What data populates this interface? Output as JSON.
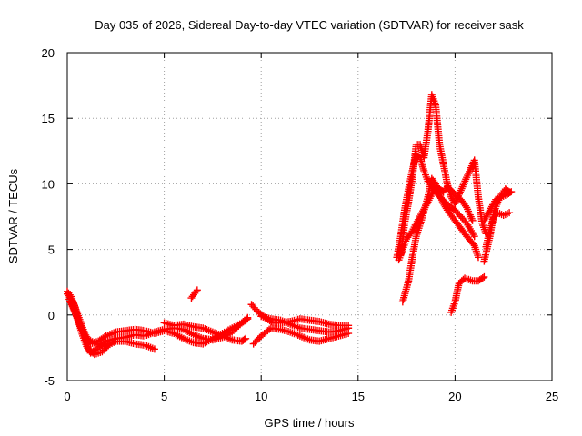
{
  "chart_data": {
    "type": "scatter",
    "title": "Day 035 of 2026, Sidereal Day-to-day VTEC variation (SDTVAR) for receiver sask",
    "xlabel": "GPS time / hours",
    "ylabel": "SDTVAR / TECUs",
    "xlim": [
      0,
      25
    ],
    "ylim": [
      -5,
      20
    ],
    "x_ticks": [
      "0",
      "5",
      "10",
      "15",
      "20",
      "25"
    ],
    "y_ticks": [
      "-5",
      "0",
      "5",
      "10",
      "15",
      "20"
    ],
    "grid": true,
    "marker": "plus",
    "series": [
      {
        "name": "SDTVAR",
        "color": "#ff0000",
        "tracks": [
          [
            [
              0.0,
              1.8
            ],
            [
              0.2,
              1.4
            ],
            [
              0.4,
              0.6
            ],
            [
              0.6,
              -0.6
            ],
            [
              0.8,
              -1.6
            ],
            [
              1.0,
              -2.4
            ],
            [
              1.2,
              -2.9
            ],
            [
              1.5,
              -2.6
            ],
            [
              2.0,
              -2.0
            ],
            [
              2.5,
              -1.8
            ],
            [
              3.0,
              -1.7
            ],
            [
              3.5,
              -1.5
            ],
            [
              4.0,
              -1.6
            ],
            [
              4.5,
              -1.3
            ],
            [
              5.0,
              -1.1
            ],
            [
              5.5,
              -1.0
            ],
            [
              6.0,
              -1.1
            ],
            [
              6.5,
              -1.5
            ],
            [
              7.0,
              -1.8
            ],
            [
              7.5,
              -1.9
            ],
            [
              8.0,
              -1.7
            ],
            [
              8.5,
              -1.3
            ],
            [
              9.0,
              -0.6
            ],
            [
              9.3,
              -0.2
            ]
          ],
          [
            [
              0.0,
              1.6
            ],
            [
              0.3,
              1.0
            ],
            [
              0.6,
              -0.2
            ],
            [
              0.9,
              -1.4
            ],
            [
              1.2,
              -2.2
            ],
            [
              1.6,
              -2.0
            ],
            [
              2.0,
              -1.6
            ],
            [
              2.5,
              -1.3
            ],
            [
              3.0,
              -1.2
            ],
            [
              3.5,
              -1.1
            ],
            [
              4.0,
              -1.2
            ],
            [
              4.5,
              -1.4
            ],
            [
              5.0,
              -1.2
            ],
            [
              5.5,
              -1.4
            ],
            [
              6.0,
              -1.8
            ],
            [
              6.5,
              -2.1
            ],
            [
              7.0,
              -2.2
            ],
            [
              7.5,
              -1.8
            ],
            [
              8.0,
              -1.4
            ],
            [
              8.5,
              -1.0
            ],
            [
              9.0,
              -0.6
            ],
            [
              9.3,
              -0.3
            ]
          ],
          [
            [
              0.1,
              1.2
            ],
            [
              0.4,
              0.2
            ],
            [
              0.7,
              -1.0
            ],
            [
              1.0,
              -1.8
            ],
            [
              1.5,
              -2.2
            ],
            [
              2.0,
              -2.4
            ],
            [
              2.5,
              -2.0
            ],
            [
              3.0,
              -2.0
            ],
            [
              3.5,
              -2.2
            ],
            [
              4.0,
              -2.3
            ],
            [
              4.5,
              -2.6
            ]
          ],
          [
            [
              0.2,
              1.0
            ],
            [
              0.5,
              -0.2
            ],
            [
              0.8,
              -1.2
            ],
            [
              1.1,
              -2.6
            ],
            [
              1.4,
              -3.0
            ],
            [
              1.8,
              -2.8
            ],
            [
              2.2,
              -2.2
            ]
          ],
          [
            [
              5.0,
              -0.6
            ],
            [
              5.5,
              -0.8
            ],
            [
              6.0,
              -0.7
            ],
            [
              6.5,
              -0.9
            ],
            [
              7.0,
              -1.0
            ],
            [
              7.5,
              -1.3
            ],
            [
              8.0,
              -1.6
            ],
            [
              8.5,
              -1.9
            ],
            [
              9.0,
              -2.0
            ],
            [
              9.2,
              -1.8
            ]
          ],
          [
            [
              6.4,
              1.3
            ],
            [
              6.7,
              1.9
            ]
          ],
          [
            [
              9.5,
              0.8
            ],
            [
              9.8,
              0.3
            ],
            [
              10.2,
              -0.2
            ],
            [
              10.6,
              -0.6
            ],
            [
              11.0,
              -0.6
            ],
            [
              11.5,
              -0.5
            ],
            [
              12.0,
              -0.3
            ],
            [
              12.5,
              -0.4
            ],
            [
              13.0,
              -0.5
            ],
            [
              13.5,
              -0.7
            ],
            [
              14.0,
              -0.8
            ],
            [
              14.5,
              -0.8
            ]
          ],
          [
            [
              9.6,
              -2.2
            ],
            [
              10.0,
              -1.6
            ],
            [
              10.5,
              -1.0
            ],
            [
              11.0,
              -1.1
            ],
            [
              11.5,
              -1.3
            ],
            [
              12.0,
              -1.6
            ],
            [
              12.5,
              -1.9
            ],
            [
              13.0,
              -2.0
            ],
            [
              13.5,
              -1.8
            ],
            [
              14.0,
              -1.6
            ],
            [
              14.5,
              -1.4
            ]
          ],
          [
            [
              10.0,
              -0.1
            ],
            [
              10.5,
              -0.3
            ],
            [
              11.0,
              -0.4
            ],
            [
              11.5,
              -0.7
            ],
            [
              12.0,
              -1.0
            ],
            [
              12.5,
              -1.1
            ],
            [
              13.0,
              -1.2
            ],
            [
              13.5,
              -1.3
            ],
            [
              14.0,
              -1.2
            ],
            [
              14.5,
              -1.0
            ]
          ],
          [
            [
              17.0,
              4.4
            ],
            [
              17.2,
              6.0
            ],
            [
              17.4,
              8.0
            ],
            [
              17.6,
              9.6
            ],
            [
              17.8,
              11.0
            ],
            [
              18.0,
              12.2
            ],
            [
              18.2,
              12.0
            ],
            [
              18.4,
              11.0
            ],
            [
              18.6,
              10.2
            ],
            [
              18.8,
              9.8
            ],
            [
              19.0,
              9.5
            ],
            [
              19.2,
              9.0
            ],
            [
              19.5,
              8.6
            ],
            [
              19.8,
              8.2
            ],
            [
              20.0,
              8.0
            ],
            [
              20.3,
              7.5
            ],
            [
              20.6,
              7.0
            ],
            [
              21.0,
              6.0
            ]
          ],
          [
            [
              17.2,
              4.6
            ],
            [
              17.4,
              7.0
            ],
            [
              17.6,
              8.6
            ],
            [
              17.8,
              10.5
            ],
            [
              18.0,
              13.0
            ],
            [
              18.2,
              13.0
            ],
            [
              18.4,
              12.0
            ],
            [
              18.6,
              14.0
            ],
            [
              18.8,
              16.8
            ],
            [
              19.0,
              16.0
            ],
            [
              19.2,
              13.0
            ],
            [
              19.4,
              11.5
            ],
            [
              19.6,
              10.0
            ],
            [
              19.8,
              9.0
            ],
            [
              20.0,
              8.5
            ],
            [
              20.3,
              9.5
            ],
            [
              20.6,
              10.5
            ],
            [
              21.0,
              11.8
            ],
            [
              21.2,
              9.0
            ],
            [
              21.4,
              7.0
            ],
            [
              21.6,
              6.2
            ]
          ],
          [
            [
              17.3,
              1.0
            ],
            [
              17.6,
              2.6
            ],
            [
              17.8,
              4.4
            ],
            [
              18.0,
              6.0
            ],
            [
              18.3,
              7.4
            ],
            [
              18.6,
              9.0
            ],
            [
              18.8,
              10.4
            ],
            [
              19.0,
              10.0
            ],
            [
              19.2,
              9.2
            ],
            [
              19.4,
              8.5
            ],
            [
              19.6,
              8.0
            ],
            [
              19.8,
              7.6
            ],
            [
              20.0,
              7.2
            ],
            [
              20.3,
              6.6
            ],
            [
              20.6,
              6.0
            ],
            [
              21.0,
              5.3
            ],
            [
              21.2,
              4.4
            ]
          ],
          [
            [
              17.1,
              4.2
            ],
            [
              17.3,
              5.0
            ],
            [
              17.5,
              5.8
            ],
            [
              17.8,
              6.4
            ],
            [
              18.0,
              7.0
            ],
            [
              18.3,
              7.8
            ],
            [
              18.6,
              8.6
            ],
            [
              18.8,
              9.2
            ],
            [
              19.0,
              9.8
            ],
            [
              19.2,
              9.6
            ],
            [
              19.4,
              9.4
            ],
            [
              19.6,
              9.8
            ],
            [
              19.8,
              9.5
            ],
            [
              20.0,
              9.2
            ],
            [
              20.3,
              8.8
            ],
            [
              20.6,
              8.2
            ],
            [
              20.9,
              7.2
            ]
          ],
          [
            [
              19.8,
              0.2
            ],
            [
              20.0,
              1.0
            ],
            [
              20.2,
              2.4
            ],
            [
              20.5,
              2.8
            ],
            [
              20.9,
              2.6
            ],
            [
              21.2,
              2.6
            ],
            [
              21.5,
              2.9
            ]
          ],
          [
            [
              21.5,
              4.1
            ],
            [
              21.8,
              6.0
            ],
            [
              22.0,
              7.8
            ],
            [
              22.2,
              8.6
            ],
            [
              22.4,
              9.2
            ],
            [
              22.6,
              9.6
            ],
            [
              22.8,
              9.4
            ]
          ],
          [
            [
              21.6,
              5.2
            ],
            [
              21.8,
              6.5
            ],
            [
              22.0,
              7.4
            ],
            [
              22.2,
              7.8
            ],
            [
              22.5,
              7.6
            ],
            [
              22.8,
              7.8
            ]
          ],
          [
            [
              21.5,
              7.2
            ],
            [
              21.8,
              8.0
            ],
            [
              22.1,
              8.8
            ],
            [
              22.4,
              9.0
            ],
            [
              22.7,
              9.2
            ],
            [
              22.9,
              9.4
            ]
          ]
        ]
      }
    ]
  }
}
